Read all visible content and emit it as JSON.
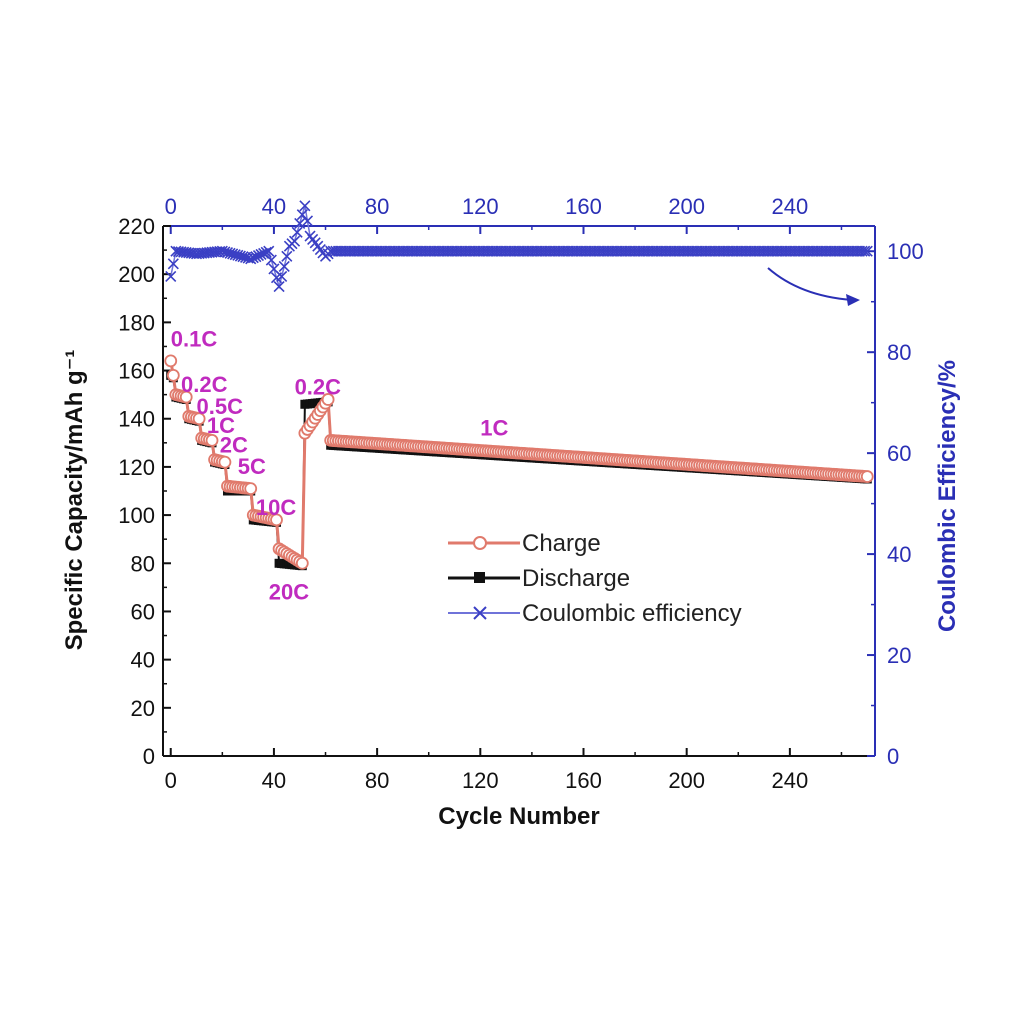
{
  "chart_data": {
    "type": "scatter",
    "xlabel": "Cycle Number",
    "ylabel_left": "Specific Capacity/mAh g⁻¹",
    "ylabel_right": "Coulombic Efficiency/%",
    "xlim": [
      -3,
      273
    ],
    "ylim_left": [
      0,
      220
    ],
    "ylim_right": [
      0,
      105
    ],
    "x_ticks": [
      "0",
      "40",
      "80",
      "120",
      "160",
      "200",
      "240"
    ],
    "y_left_ticks": [
      "0",
      "20",
      "40",
      "60",
      "80",
      "100",
      "120",
      "140",
      "160",
      "180",
      "200",
      "220"
    ],
    "y_right_ticks": [
      "0",
      "20",
      "40",
      "60",
      "80",
      "100"
    ],
    "legend": [
      "Charge",
      "Discharge",
      "Coulombic efficiency"
    ],
    "legend_position": "center-right",
    "colors": {
      "charge": "#e07a6c",
      "discharge": "#111111",
      "efficiency": "#3a3fc4",
      "labels": "#c02bbf",
      "right_axis": "#2a2fb5"
    },
    "rate_labels": [
      {
        "text": "0.1C",
        "x": 0,
        "y": 170
      },
      {
        "text": "0.2C",
        "x": 4,
        "y": 151
      },
      {
        "text": "0.5C",
        "x": 10,
        "y": 142
      },
      {
        "text": "1C",
        "x": 14,
        "y": 134
      },
      {
        "text": "2C",
        "x": 19,
        "y": 126
      },
      {
        "text": "5C",
        "x": 26,
        "y": 117
      },
      {
        "text": "10C",
        "x": 33,
        "y": 100
      },
      {
        "text": "20C",
        "x": 38,
        "y": 65
      },
      {
        "text": "0.2C",
        "x": 48,
        "y": 150
      },
      {
        "text": "1C",
        "x": 120,
        "y": 133
      }
    ],
    "segments": [
      {
        "rate": "0.1C",
        "from": 0,
        "to": 1,
        "charge": [
          164,
          158
        ],
        "discharge": [
          158,
          157
        ]
      },
      {
        "rate": "0.2C",
        "from": 2,
        "to": 6,
        "charge": [
          150,
          149
        ],
        "discharge": [
          149,
          148
        ]
      },
      {
        "rate": "0.5C",
        "from": 7,
        "to": 11,
        "charge": [
          141,
          140
        ],
        "discharge": [
          140,
          139
        ]
      },
      {
        "rate": "1C",
        "from": 12,
        "to": 16,
        "charge": [
          132,
          131
        ],
        "discharge": [
          131,
          130
        ]
      },
      {
        "rate": "2C",
        "from": 17,
        "to": 21,
        "charge": [
          123,
          122
        ],
        "discharge": [
          122,
          121
        ]
      },
      {
        "rate": "5C",
        "from": 22,
        "to": 31,
        "charge": [
          112,
          111
        ],
        "discharge": [
          110,
          110
        ]
      },
      {
        "rate": "10C",
        "from": 32,
        "to": 41,
        "charge": [
          100,
          98
        ],
        "discharge": [
          98,
          97
        ]
      },
      {
        "rate": "20C",
        "from": 42,
        "to": 51,
        "charge": [
          86,
          80
        ],
        "discharge": [
          80,
          79
        ]
      },
      {
        "rate": "0.2C",
        "from": 52,
        "to": 61,
        "charge": [
          134,
          148
        ],
        "discharge": [
          146,
          147
        ]
      },
      {
        "rate": "1C",
        "from": 62,
        "to": 270,
        "charge": [
          131,
          116
        ],
        "discharge": [
          129,
          115
        ]
      }
    ],
    "efficiency": [
      {
        "x": 0,
        "y": 95
      },
      {
        "x": 2,
        "y": 100
      },
      {
        "x": 10,
        "y": 99.5
      },
      {
        "x": 20,
        "y": 100
      },
      {
        "x": 31,
        "y": 98.5
      },
      {
        "x": 38,
        "y": 100
      },
      {
        "x": 42,
        "y": 93
      },
      {
        "x": 46,
        "y": 101
      },
      {
        "x": 48,
        "y": 102
      },
      {
        "x": 52,
        "y": 109
      },
      {
        "x": 54,
        "y": 103
      },
      {
        "x": 60,
        "y": 99
      },
      {
        "x": 62,
        "y": 100
      },
      {
        "x": 100,
        "y": 100
      },
      {
        "x": 150,
        "y": 100
      },
      {
        "x": 200,
        "y": 100
      },
      {
        "x": 250,
        "y": 100
      },
      {
        "x": 270,
        "y": 100
      }
    ]
  }
}
